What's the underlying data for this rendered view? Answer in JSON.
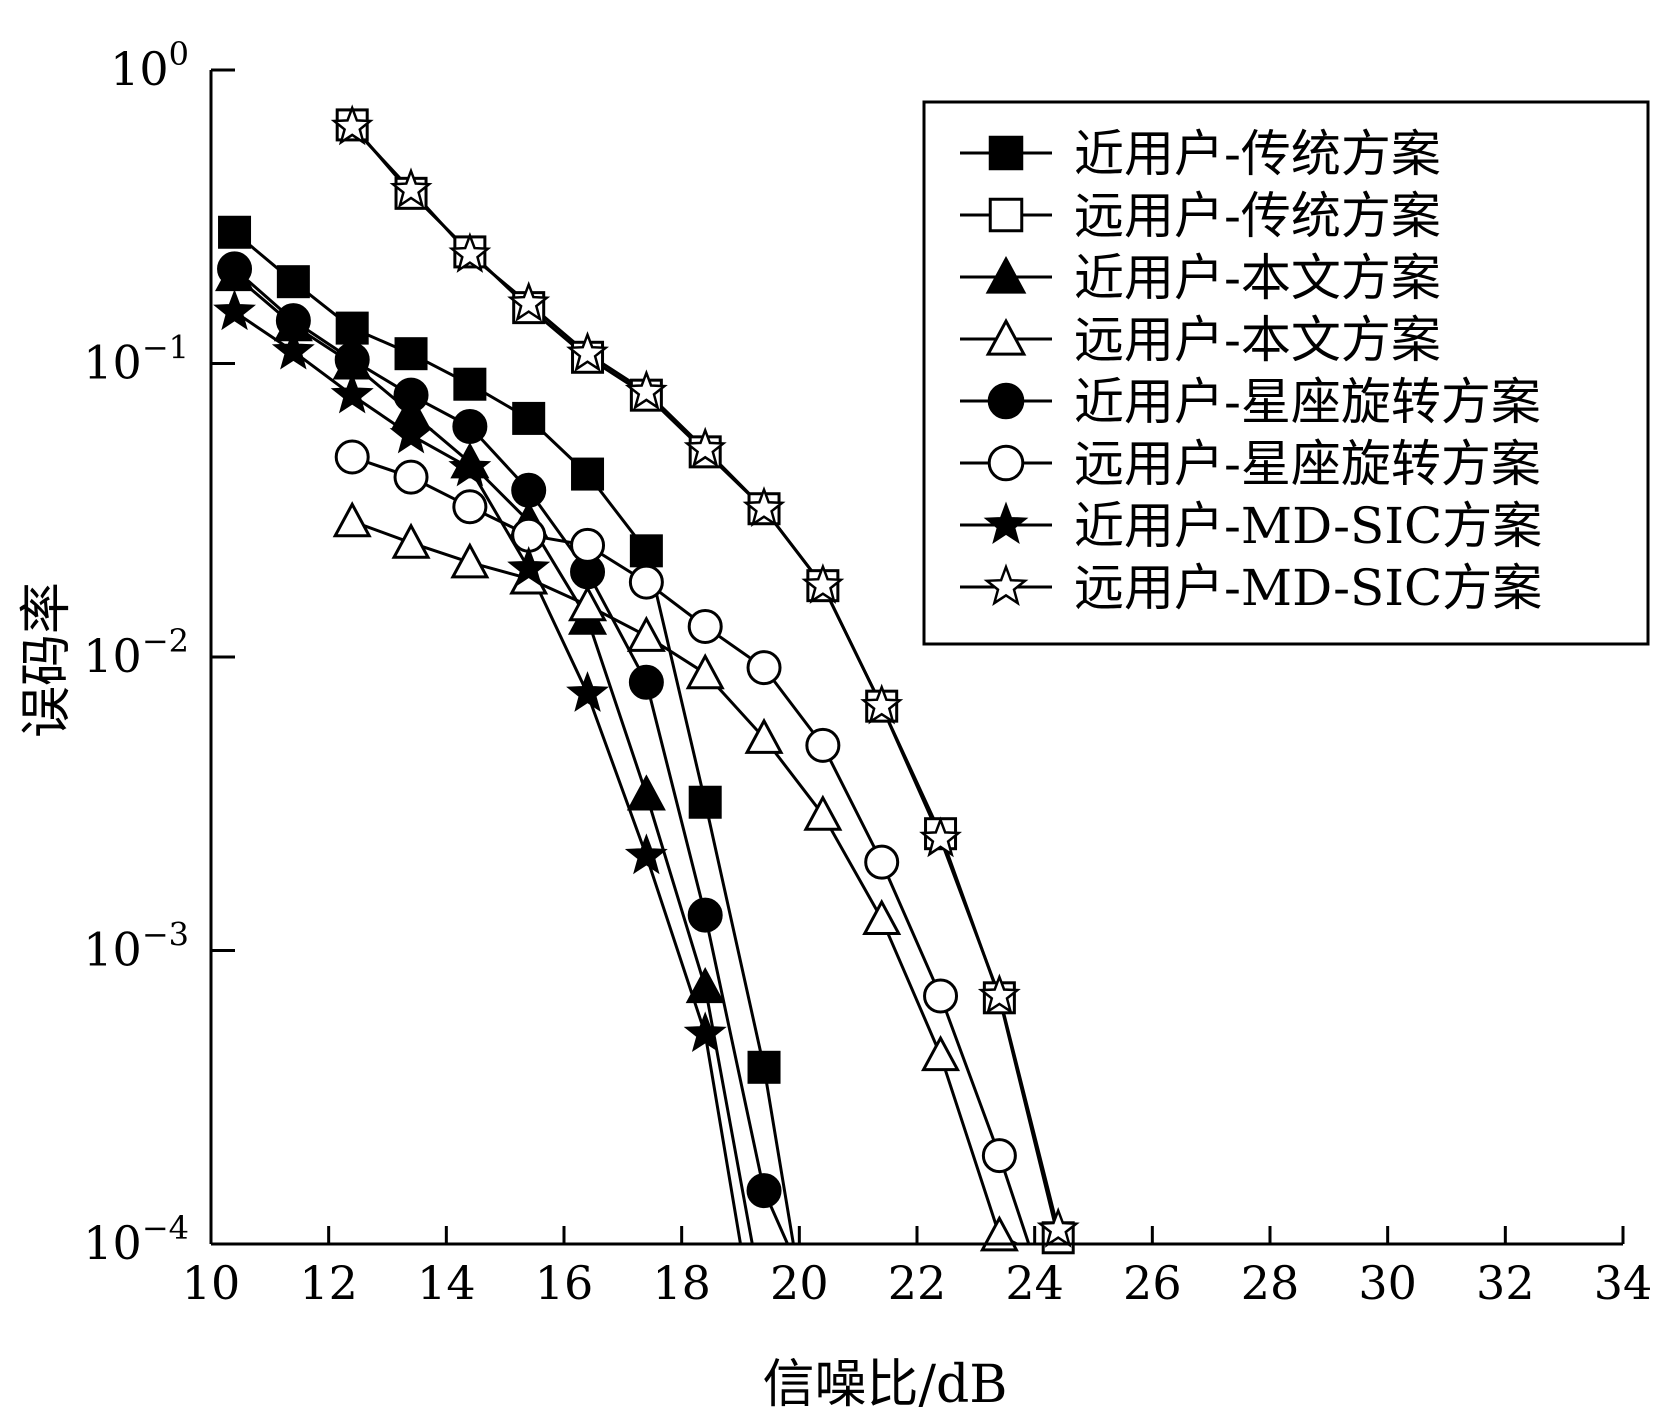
{
  "chart_data": {
    "type": "line",
    "title": "",
    "xlabel": "信噪比/dB",
    "ylabel": "误码率",
    "yscale": "log",
    "xlim": [
      10,
      34
    ],
    "ylim": [
      0.0001,
      1
    ],
    "x_ticks": [
      "10",
      "12",
      "14",
      "16",
      "18",
      "20",
      "22",
      "24",
      "26",
      "28",
      "30",
      "32",
      "34"
    ],
    "y_ticks": [
      {
        "base": "10",
        "exp": "0",
        "value": 1
      },
      {
        "base": "10",
        "exp": "−1",
        "value": 0.1
      },
      {
        "base": "10",
        "exp": "−2",
        "value": 0.01
      },
      {
        "base": "10",
        "exp": "−3",
        "value": 0.001
      },
      {
        "base": "10",
        "exp": "−4",
        "value": 0.0001
      }
    ],
    "grid": false,
    "legend_position": "top-right",
    "series": [
      {
        "name": "近用户-传统方案",
        "marker": "square",
        "filled": true,
        "points": [
          [
            10.4,
            0.28
          ],
          [
            11.4,
            0.19
          ],
          [
            12.4,
            0.132
          ],
          [
            13.4,
            0.108
          ],
          [
            14.4,
            0.085
          ],
          [
            15.4,
            0.065
          ],
          [
            16.4,
            0.042
          ],
          [
            17.4,
            0.023
          ],
          [
            18.4,
            0.0032
          ],
          [
            19.4,
            0.0004
          ],
          [
            19.9,
            0.0001
          ]
        ]
      },
      {
        "name": "远用户-传统方案",
        "marker": "square",
        "filled": false,
        "points": [
          [
            12.4,
            0.65
          ],
          [
            13.4,
            0.38
          ],
          [
            14.4,
            0.24
          ],
          [
            15.4,
            0.155
          ],
          [
            16.4,
            0.105
          ],
          [
            17.4,
            0.078
          ],
          [
            18.4,
            0.05
          ],
          [
            19.4,
            0.032
          ],
          [
            20.4,
            0.0175
          ],
          [
            21.4,
            0.0068
          ],
          [
            22.4,
            0.0025
          ],
          [
            23.4,
            0.00069
          ],
          [
            24.4,
            0.000105
          ]
        ]
      },
      {
        "name": "近用户-本文方案",
        "marker": "triangle",
        "filled": true,
        "points": [
          [
            10.4,
            0.2
          ],
          [
            11.4,
            0.135
          ],
          [
            12.4,
            0.1
          ],
          [
            13.4,
            0.068
          ],
          [
            14.4,
            0.046
          ],
          [
            15.4,
            0.029
          ],
          [
            16.4,
            0.0135
          ],
          [
            17.4,
            0.0034
          ],
          [
            18.4,
            0.00075
          ],
          [
            19.2,
            0.0001
          ]
        ]
      },
      {
        "name": "远用户-本文方案",
        "marker": "triangle",
        "filled": false,
        "points": [
          [
            12.4,
            0.029
          ],
          [
            13.4,
            0.0245
          ],
          [
            14.4,
            0.021
          ],
          [
            15.4,
            0.0185
          ],
          [
            16.4,
            0.015
          ],
          [
            17.4,
            0.0118
          ],
          [
            18.4,
            0.0088
          ],
          [
            19.4,
            0.0053
          ],
          [
            20.4,
            0.0029
          ],
          [
            21.4,
            0.00128
          ],
          [
            22.4,
            0.00044
          ],
          [
            23.4,
            0.000107
          ],
          [
            23.7,
            0.0001
          ]
        ]
      },
      {
        "name": "近用户-星座旋转方案",
        "marker": "circle",
        "filled": true,
        "points": [
          [
            10.4,
            0.21
          ],
          [
            11.4,
            0.14
          ],
          [
            12.4,
            0.103
          ],
          [
            13.4,
            0.078
          ],
          [
            14.4,
            0.061
          ],
          [
            15.4,
            0.037
          ],
          [
            16.4,
            0.0195
          ],
          [
            17.4,
            0.0082
          ],
          [
            18.4,
            0.00132
          ],
          [
            19.4,
            0.000152
          ],
          [
            19.8,
            0.0001
          ]
        ]
      },
      {
        "name": "远用户-星座旋转方案",
        "marker": "circle",
        "filled": false,
        "points": [
          [
            12.4,
            0.048
          ],
          [
            13.4,
            0.041
          ],
          [
            14.4,
            0.0325
          ],
          [
            15.4,
            0.026
          ],
          [
            16.4,
            0.024
          ],
          [
            17.4,
            0.018
          ],
          [
            18.4,
            0.0127
          ],
          [
            19.4,
            0.0092
          ],
          [
            20.4,
            0.005
          ],
          [
            21.4,
            0.002
          ],
          [
            22.4,
            0.0007
          ],
          [
            23.4,
            0.0002
          ],
          [
            23.9,
            0.0001
          ]
        ]
      },
      {
        "name": "近用户-MD-SIC方案",
        "marker": "star",
        "filled": true,
        "points": [
          [
            10.4,
            0.15
          ],
          [
            11.4,
            0.11
          ],
          [
            12.4,
            0.078
          ],
          [
            13.4,
            0.057
          ],
          [
            14.4,
            0.044
          ],
          [
            15.4,
            0.02
          ],
          [
            16.4,
            0.0075
          ],
          [
            17.4,
            0.0021
          ],
          [
            18.4,
            0.00052
          ],
          [
            19.0,
            0.0001
          ]
        ]
      },
      {
        "name": "远用户-MD-SIC方案",
        "marker": "star",
        "filled": false,
        "points": [
          [
            12.4,
            0.64
          ],
          [
            13.4,
            0.39
          ],
          [
            14.4,
            0.235
          ],
          [
            15.4,
            0.16
          ],
          [
            16.4,
            0.108
          ],
          [
            17.4,
            0.08
          ],
          [
            18.4,
            0.051
          ],
          [
            19.4,
            0.032
          ],
          [
            20.4,
            0.0175
          ],
          [
            21.4,
            0.0068
          ],
          [
            22.4,
            0.0024
          ],
          [
            23.4,
            0.0007
          ],
          [
            24.4,
            0.000112
          ]
        ]
      }
    ]
  }
}
